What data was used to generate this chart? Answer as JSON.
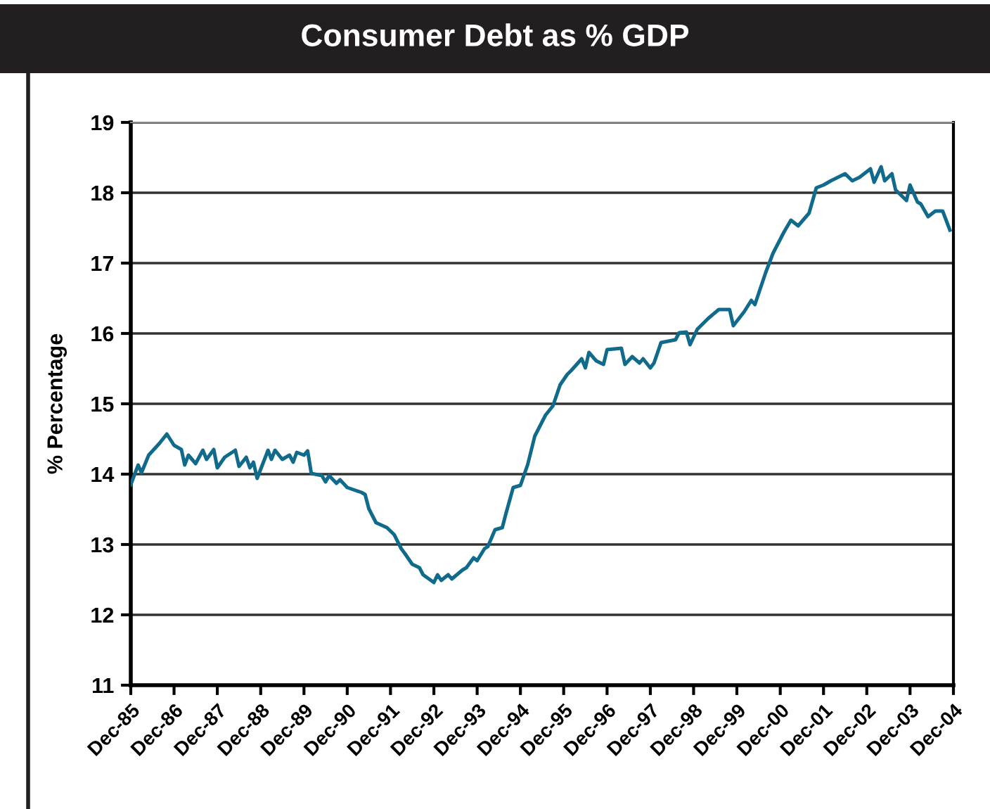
{
  "chart_data": {
    "type": "line",
    "title": "Consumer Debt as % GDP",
    "ylabel": "% Percentage",
    "x": [
      "1985-12",
      "1986-02",
      "1986-03",
      "1986-05",
      "1986-08",
      "1986-10",
      "1986-12",
      "1987-02",
      "1987-03",
      "1987-04",
      "1987-06",
      "1987-08",
      "1987-09",
      "1987-11",
      "1987-12",
      "1988-02",
      "1988-05",
      "1988-06",
      "1988-08",
      "1988-09",
      "1988-10",
      "1988-11",
      "1989-02",
      "1989-03",
      "1989-04",
      "1989-06",
      "1989-08",
      "1989-09",
      "1989-10",
      "1989-12",
      "1990-01",
      "1990-02",
      "1990-05",
      "1990-06",
      "1990-07",
      "1990-09",
      "1990-10",
      "1990-12",
      "1991-04",
      "1991-05",
      "1991-06",
      "1991-08",
      "1991-11",
      "1992-01",
      "1992-03",
      "1992-04",
      "1992-06",
      "1992-08",
      "1992-09",
      "1992-12",
      "1993-01",
      "1993-02",
      "1993-04",
      "1993-05",
      "1993-08",
      "1993-09",
      "1993-11",
      "1993-12",
      "1994-02",
      "1994-03",
      "1994-05",
      "1994-07",
      "1994-08",
      "1994-10",
      "1994-12",
      "1995-02",
      "1995-04",
      "1995-07",
      "1995-09",
      "1995-11",
      "1996-01",
      "1996-02",
      "1996-05",
      "1996-06",
      "1996-07",
      "1996-09",
      "1996-11",
      "1996-12",
      "1997-04",
      "1997-05",
      "1997-07",
      "1997-09",
      "1997-10",
      "1997-12",
      "1998-01",
      "1998-03",
      "1998-07",
      "1998-08",
      "1998-10",
      "1998-11",
      "1999-01",
      "1999-04",
      "1999-07",
      "1999-10",
      "1999-11",
      "2000-02",
      "2000-04",
      "2000-05",
      "2000-08",
      "2000-10",
      "2001-01",
      "2001-03",
      "2001-05",
      "2001-08",
      "2001-10",
      "2001-12",
      "2002-02",
      "2002-06",
      "2002-08",
      "2002-10",
      "2003-01",
      "2003-02",
      "2003-04",
      "2003-05",
      "2003-07",
      "2003-08",
      "2003-11",
      "2003-12",
      "2004-02",
      "2004-03",
      "2004-05",
      "2004-07",
      "2004-09",
      "2004-11"
    ],
    "series": [
      {
        "color": "#0f6a8b",
        "values": [
          13.85,
          14.13,
          14.02,
          14.27,
          14.44,
          14.57,
          14.41,
          14.35,
          14.13,
          14.27,
          14.15,
          14.34,
          14.21,
          14.35,
          14.09,
          14.24,
          14.34,
          14.11,
          14.24,
          14.09,
          14.17,
          13.94,
          14.34,
          14.21,
          14.34,
          14.21,
          14.27,
          14.17,
          14.31,
          14.27,
          14.33,
          14.01,
          13.98,
          13.89,
          13.98,
          13.87,
          13.92,
          13.81,
          13.74,
          13.71,
          13.51,
          13.31,
          13.24,
          13.14,
          12.94,
          12.87,
          12.72,
          12.67,
          12.57,
          12.46,
          12.57,
          12.49,
          12.57,
          12.51,
          12.64,
          12.67,
          12.81,
          12.77,
          12.94,
          12.97,
          13.21,
          13.24,
          13.44,
          13.81,
          13.84,
          14.14,
          14.54,
          14.84,
          14.97,
          15.27,
          15.42,
          15.47,
          15.64,
          15.51,
          15.73,
          15.61,
          15.56,
          15.77,
          15.79,
          15.56,
          15.67,
          15.58,
          15.64,
          15.51,
          15.58,
          15.87,
          15.91,
          16.01,
          16.02,
          15.84,
          16.06,
          16.21,
          16.34,
          16.34,
          16.11,
          16.31,
          16.47,
          16.41,
          16.87,
          17.14,
          17.44,
          17.61,
          17.53,
          17.71,
          18.07,
          18.11,
          18.17,
          18.27,
          18.17,
          18.22,
          18.34,
          18.15,
          18.37,
          18.17,
          18.27,
          18.04,
          17.89,
          18.11,
          17.87,
          17.84,
          17.66,
          17.74,
          17.74,
          17.47
        ]
      }
    ],
    "xlim": [
      "1985-12",
      "2004-12"
    ],
    "xticks": [
      {
        "value": "1985-12",
        "label": "Dec-85"
      },
      {
        "value": "1986-12",
        "label": "Dec-86"
      },
      {
        "value": "1987-12",
        "label": "Dec-87"
      },
      {
        "value": "1988-12",
        "label": "Dec-88"
      },
      {
        "value": "1989-12",
        "label": "Dec-89"
      },
      {
        "value": "1990-12",
        "label": "Dec-90"
      },
      {
        "value": "1991-12",
        "label": "Dec-91"
      },
      {
        "value": "1992-12",
        "label": "Dec-92"
      },
      {
        "value": "1993-12",
        "label": "Dec-93"
      },
      {
        "value": "1994-12",
        "label": "Dec-94"
      },
      {
        "value": "1995-12",
        "label": "Dec-95"
      },
      {
        "value": "1996-12",
        "label": "Dec-96"
      },
      {
        "value": "1997-12",
        "label": "Dec-97"
      },
      {
        "value": "1998-12",
        "label": "Dec-98"
      },
      {
        "value": "1999-12",
        "label": "Dec-99"
      },
      {
        "value": "2000-12",
        "label": "Dec-00"
      },
      {
        "value": "2001-12",
        "label": "Dec-01"
      },
      {
        "value": "2002-12",
        "label": "Dec-02"
      },
      {
        "value": "2003-12",
        "label": "Dec-03"
      },
      {
        "value": "2004-12",
        "label": "Dec-04"
      }
    ],
    "ylim": [
      11,
      19
    ],
    "yticks": [
      11,
      12,
      13,
      14,
      15,
      16,
      17,
      18,
      19
    ],
    "grid": "y",
    "marker": "none",
    "line_style": "solid"
  }
}
